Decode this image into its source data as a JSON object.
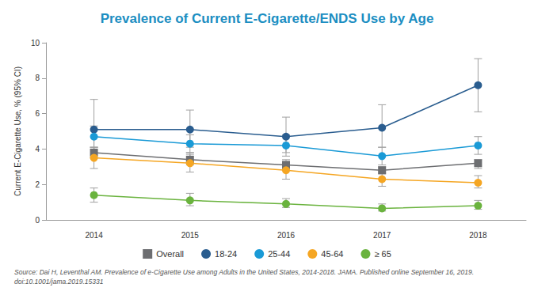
{
  "chart_data": {
    "type": "line",
    "title": "Prevalence of Current E-Cigarette/ENDS Use by Age",
    "y_label": "Current E-Cigarette Use, % (95% CI)",
    "source": "Source: Dai H, Leventhal AM. Prevalence of e-Cigarette Use among Adults in the United States, 2014-2018. JAMA. Published online September 16, 2019.\ndoi:10.1001/jama.2019.15331",
    "categories": [
      "2014",
      "2015",
      "2016",
      "2017",
      "2018"
    ],
    "ylim": [
      0,
      10
    ],
    "yticks": [
      0,
      2,
      4,
      6,
      8,
      10
    ],
    "grid": false,
    "legend": "bottom",
    "series": [
      {
        "name": "Overall",
        "color": "#6d6e71",
        "marker": "square",
        "values": [
          3.8,
          3.4,
          3.1,
          2.8,
          3.2
        ],
        "ci_lower": [
          3.5,
          3.1,
          2.9,
          2.6,
          2.9
        ],
        "ci_upper": [
          4.1,
          3.7,
          3.4,
          3.0,
          3.4
        ]
      },
      {
        "name": "18-24",
        "color": "#2a5d8f",
        "marker": "circle",
        "values": [
          5.1,
          5.1,
          4.7,
          5.2,
          7.6
        ],
        "ci_lower": [
          3.5,
          4.1,
          3.8,
          4.1,
          6.1
        ],
        "ci_upper": [
          6.8,
          6.2,
          5.8,
          6.5,
          9.1
        ]
      },
      {
        "name": "25-44",
        "color": "#1a9ad6",
        "marker": "circle",
        "values": [
          4.7,
          4.3,
          4.2,
          3.6,
          4.2
        ],
        "ci_lower": [
          4.1,
          3.8,
          3.6,
          3.1,
          3.7
        ],
        "ci_upper": [
          5.3,
          4.8,
          4.8,
          4.1,
          4.7
        ]
      },
      {
        "name": "45-64",
        "color": "#f5a623",
        "marker": "circle",
        "values": [
          3.5,
          3.2,
          2.8,
          2.3,
          2.1
        ],
        "ci_lower": [
          2.9,
          2.7,
          2.3,
          1.9,
          1.8
        ],
        "ci_upper": [
          4.1,
          3.8,
          3.3,
          2.7,
          2.5
        ]
      },
      {
        "name": "≥ 65",
        "color": "#6ab33e",
        "marker": "circle",
        "values": [
          1.4,
          1.1,
          0.9,
          0.65,
          0.8
        ],
        "ci_lower": [
          1.0,
          0.8,
          0.7,
          0.5,
          0.6
        ],
        "ci_upper": [
          1.8,
          1.5,
          1.2,
          0.9,
          1.1
        ]
      }
    ]
  }
}
